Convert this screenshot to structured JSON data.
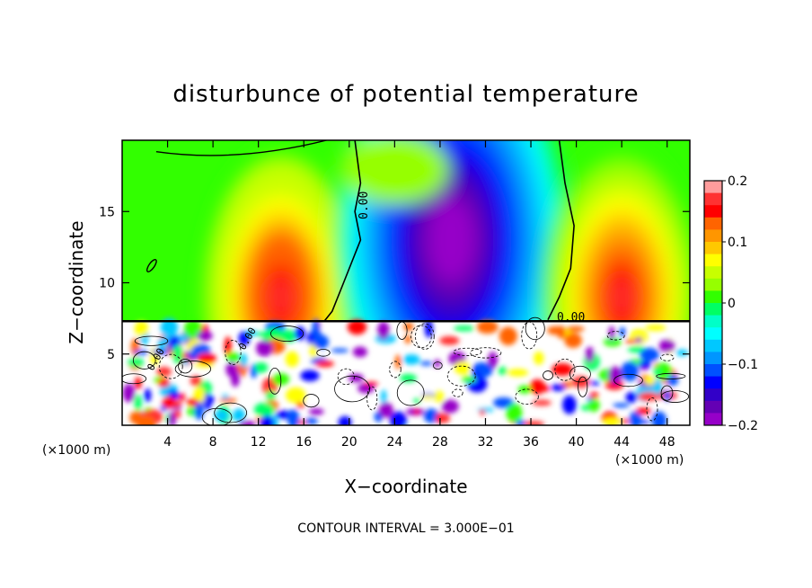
{
  "chart_data": {
    "type": "heatmap",
    "title": "disturbunce of potential temperature",
    "xlabel": "X−coordinate",
    "ylabel": "Z−coordinate",
    "x_unit": "(×1000 m)",
    "y_unit": "(×1000 m)",
    "xlim": [
      0,
      50
    ],
    "ylim": [
      0,
      20
    ],
    "x_ticks": [
      "4",
      "8",
      "12",
      "16",
      "20",
      "24",
      "28",
      "32",
      "36",
      "40",
      "44",
      "48"
    ],
    "x_tick_values": [
      4,
      8,
      12,
      16,
      20,
      24,
      28,
      32,
      36,
      40,
      44,
      48
    ],
    "y_ticks": [
      "5",
      "10",
      "15"
    ],
    "y_tick_values": [
      5,
      10,
      15
    ],
    "colorbar": {
      "range": [
        -0.2,
        0.2
      ],
      "ticks": [
        "0.2",
        "0.1",
        "0",
        "−0.1",
        "−0.2"
      ],
      "tick_values": [
        0.2,
        0.1,
        0,
        -0.1,
        -0.2
      ],
      "colors": [
        "#ff9c9c",
        "#ff3232",
        "#ff0000",
        "#ff6400",
        "#ff9600",
        "#ffc800",
        "#ffff00",
        "#c8ff00",
        "#96ff00",
        "#32ff00",
        "#00ff64",
        "#00ffc8",
        "#00ffff",
        "#00c8ff",
        "#0096ff",
        "#0050ff",
        "#0000ff",
        "#3200c8",
        "#6400b4",
        "#9600c8"
      ]
    },
    "contour_labels": [
      "0.00",
      "0.00",
      "0.00",
      "0.00"
    ],
    "contour_interval_text": "CONTOUR INTERVAL = 3.000E−01",
    "features": [
      {
        "kind": "warm-anomaly",
        "x": 14,
        "z": 9,
        "value": 0.18
      },
      {
        "kind": "cold-anomaly",
        "x": 29,
        "z": 11,
        "value": -0.2
      },
      {
        "kind": "warm-anomaly",
        "x": 44,
        "z": 9,
        "value": 0.17
      },
      {
        "kind": "turbulent-layer",
        "z_range": [
          0,
          7.3
        ]
      }
    ]
  }
}
